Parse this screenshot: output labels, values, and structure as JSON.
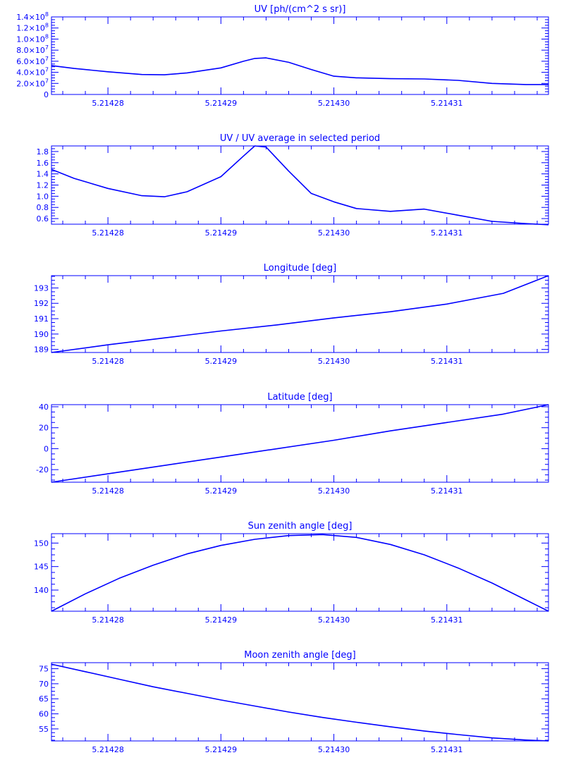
{
  "style": {
    "color": "#0000ff",
    "background": "#ffffff"
  },
  "chart_data": [
    {
      "type": "line",
      "title": "UV [ph/(cm^2 s sr)]",
      "xlabel": "",
      "ylabel": "",
      "xlim": [
        5.214275,
        5.214319
      ],
      "ylim": [
        0,
        140000000
      ],
      "xticks": [
        5.21428,
        5.21429,
        5.2143,
        5.21431
      ],
      "xtick_labels": [
        "5.21428",
        "5.21429",
        "5.21430",
        "5.21431"
      ],
      "yticks": [
        0,
        20000000,
        40000000,
        60000000,
        80000000,
        100000000,
        120000000,
        140000000
      ],
      "ytick_labels": [
        {
          "m": "0",
          "e": ""
        },
        {
          "m": "2.0×10",
          "e": "7"
        },
        {
          "m": "4.0×10",
          "e": "7"
        },
        {
          "m": "6.0×10",
          "e": "7"
        },
        {
          "m": "8.0×10",
          "e": "7"
        },
        {
          "m": "1.0×10",
          "e": "8"
        },
        {
          "m": "1.2×10",
          "e": "8"
        },
        {
          "m": "1.4×10",
          "e": "8"
        }
      ],
      "series": [
        {
          "x": [
            5.214275,
            5.214277,
            5.21428,
            5.214283,
            5.214285,
            5.214287,
            5.21429,
            5.214292,
            5.214293,
            5.214294,
            5.214296,
            5.214298,
            5.2143,
            5.214302,
            5.214305,
            5.214308,
            5.214311,
            5.214314,
            5.214317,
            5.214319
          ],
          "y": [
            52000000,
            47000000,
            41000000,
            36000000,
            35500000,
            39000000,
            48000000,
            60000000,
            65000000,
            66000000,
            58000000,
            45000000,
            33000000,
            30000000,
            28500000,
            28000000,
            25500000,
            20000000,
            18000000,
            18000000
          ]
        }
      ]
    },
    {
      "type": "line",
      "title": "UV / UV average in selected period",
      "xlabel": "",
      "ylabel": "",
      "xlim": [
        5.214275,
        5.214319
      ],
      "ylim": [
        0.5,
        1.9
      ],
      "xticks": [
        5.21428,
        5.21429,
        5.2143,
        5.21431
      ],
      "xtick_labels": [
        "5.21428",
        "5.21429",
        "5.21430",
        "5.21431"
      ],
      "yticks": [
        0.6,
        0.8,
        1.0,
        1.2,
        1.4,
        1.6,
        1.8
      ],
      "ytick_labels": [
        {
          "m": "0.6",
          "e": ""
        },
        {
          "m": "0.8",
          "e": ""
        },
        {
          "m": "1.0",
          "e": ""
        },
        {
          "m": "1.2",
          "e": ""
        },
        {
          "m": "1.4",
          "e": ""
        },
        {
          "m": "1.6",
          "e": ""
        },
        {
          "m": "1.8",
          "e": ""
        }
      ],
      "series": [
        {
          "x": [
            5.214275,
            5.214277,
            5.21428,
            5.214283,
            5.214285,
            5.214287,
            5.21429,
            5.214292,
            5.214293,
            5.214294,
            5.214296,
            5.214298,
            5.2143,
            5.214302,
            5.214305,
            5.214308,
            5.214311,
            5.214314,
            5.214317,
            5.214319
          ],
          "y": [
            1.48,
            1.32,
            1.14,
            1.01,
            0.99,
            1.08,
            1.35,
            1.72,
            1.9,
            1.88,
            1.45,
            1.05,
            0.9,
            0.78,
            0.73,
            0.77,
            0.66,
            0.55,
            0.51,
            0.49
          ]
        }
      ]
    },
    {
      "type": "line",
      "title": "Longitude [deg]",
      "xlabel": "",
      "ylabel": "",
      "xlim": [
        5.214275,
        5.214319
      ],
      "ylim": [
        188.8,
        193.8
      ],
      "xticks": [
        5.21428,
        5.21429,
        5.2143,
        5.21431
      ],
      "xtick_labels": [
        "5.21428",
        "5.21429",
        "5.21430",
        "5.21431"
      ],
      "yticks": [
        189,
        190,
        191,
        192,
        193
      ],
      "ytick_labels": [
        {
          "m": "189",
          "e": ""
        },
        {
          "m": "190",
          "e": ""
        },
        {
          "m": "191",
          "e": ""
        },
        {
          "m": "192",
          "e": ""
        },
        {
          "m": "193",
          "e": ""
        }
      ],
      "series": [
        {
          "x": [
            5.214275,
            5.21428,
            5.214285,
            5.21429,
            5.214295,
            5.2143,
            5.214305,
            5.21431,
            5.214315,
            5.214319
          ],
          "y": [
            188.8,
            189.3,
            189.75,
            190.2,
            190.6,
            191.05,
            191.45,
            191.95,
            192.65,
            193.8
          ]
        }
      ]
    },
    {
      "type": "line",
      "title": "Latitude [deg]",
      "xlabel": "",
      "ylabel": "",
      "xlim": [
        5.214275,
        5.214319
      ],
      "ylim": [
        -32,
        42
      ],
      "xticks": [
        5.21428,
        5.21429,
        5.2143,
        5.21431
      ],
      "xtick_labels": [
        "5.21428",
        "5.21429",
        "5.21430",
        "5.21431"
      ],
      "yticks": [
        -20,
        0,
        20,
        40
      ],
      "ytick_labels": [
        {
          "m": "-20",
          "e": ""
        },
        {
          "m": "0",
          "e": ""
        },
        {
          "m": "20",
          "e": ""
        },
        {
          "m": "40",
          "e": ""
        }
      ],
      "series": [
        {
          "x": [
            5.214275,
            5.21428,
            5.214285,
            5.21429,
            5.214295,
            5.2143,
            5.214305,
            5.21431,
            5.214315,
            5.214319
          ],
          "y": [
            -32,
            -24,
            -16,
            -8,
            0,
            8,
            17,
            25,
            33,
            42
          ]
        }
      ]
    },
    {
      "type": "line",
      "title": "Sun zenith angle [deg]",
      "xlabel": "",
      "ylabel": "",
      "xlim": [
        5.214275,
        5.214319
      ],
      "ylim": [
        135.5,
        152
      ],
      "xticks": [
        5.21428,
        5.21429,
        5.2143,
        5.21431
      ],
      "xtick_labels": [
        "5.21428",
        "5.21429",
        "5.21430",
        "5.21431"
      ],
      "yticks": [
        140,
        145,
        150
      ],
      "ytick_labels": [
        {
          "m": "140",
          "e": ""
        },
        {
          "m": "145",
          "e": ""
        },
        {
          "m": "150",
          "e": ""
        }
      ],
      "series": [
        {
          "x": [
            5.214275,
            5.214278,
            5.214281,
            5.214284,
            5.214287,
            5.21429,
            5.214293,
            5.214296,
            5.214299,
            5.214302,
            5.214305,
            5.214308,
            5.214311,
            5.214314,
            5.214317,
            5.214319
          ],
          "y": [
            135.5,
            139.2,
            142.5,
            145.3,
            147.7,
            149.5,
            150.8,
            151.6,
            151.8,
            151.2,
            149.7,
            147.5,
            144.7,
            141.5,
            137.9,
            135.5
          ]
        }
      ]
    },
    {
      "type": "line",
      "title": "Moon zenith angle [deg]",
      "xlabel": "",
      "ylabel": "",
      "xlim": [
        5.214275,
        5.214319
      ],
      "ylim": [
        51,
        77
      ],
      "xticks": [
        5.21428,
        5.21429,
        5.2143,
        5.21431
      ],
      "xtick_labels": [
        "5.21428",
        "5.21429",
        "5.21430",
        "5.21431"
      ],
      "yticks": [
        55,
        60,
        65,
        70,
        75
      ],
      "ytick_labels": [
        {
          "m": "55",
          "e": ""
        },
        {
          "m": "60",
          "e": ""
        },
        {
          "m": "65",
          "e": ""
        },
        {
          "m": "70",
          "e": ""
        },
        {
          "m": "75",
          "e": ""
        }
      ],
      "series": [
        {
          "x": [
            5.214275,
            5.214278,
            5.214281,
            5.214284,
            5.214287,
            5.21429,
            5.214293,
            5.214296,
            5.214299,
            5.214302,
            5.214305,
            5.214308,
            5.214311,
            5.214314,
            5.214317,
            5.214319
          ],
          "y": [
            76.5,
            74.0,
            71.5,
            69.0,
            66.8,
            64.6,
            62.6,
            60.6,
            58.8,
            57.2,
            55.7,
            54.3,
            53.1,
            52.0,
            51.3,
            51.0
          ]
        }
      ]
    }
  ]
}
